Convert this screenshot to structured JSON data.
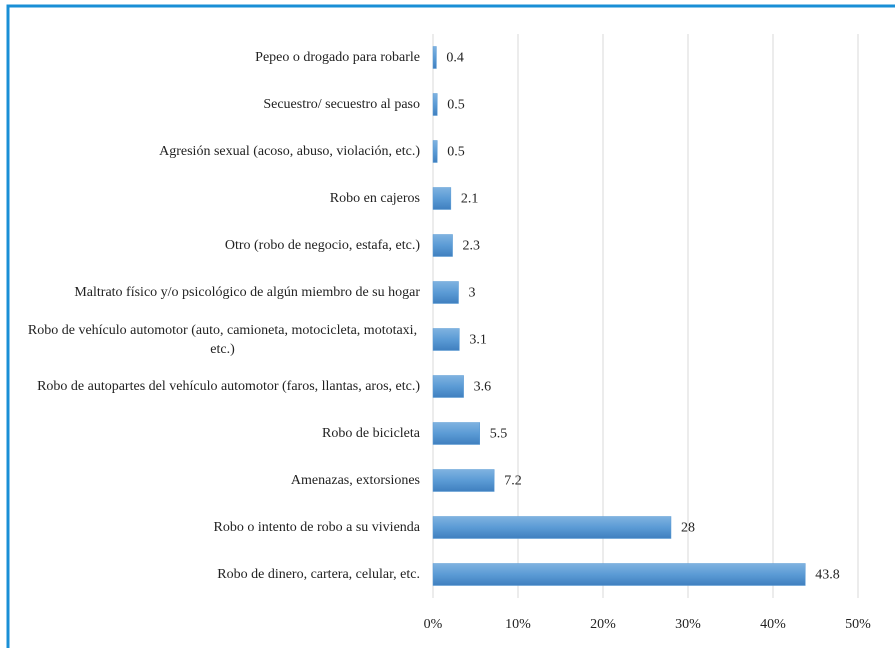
{
  "chart_data": {
    "type": "bar",
    "orientation": "horizontal",
    "categories": [
      "Pepeo o drogado para robarle",
      "Secuestro/ secuestro al paso",
      "Agresión sexual (acoso, abuso, violación, etc.)",
      "Robo en cajeros",
      "Otro (robo de negocio, estafa, etc.)",
      "Maltrato físico y/o psicológico de algún miembro de su hogar",
      "Robo de vehículo automotor (auto, camioneta, motocicleta, mototaxi, etc.)",
      "Robo de autopartes del vehículo automotor (faros, llantas, aros, etc.)",
      "Robo de bicicleta",
      "Amenazas, extorsiones",
      "Robo o intento de robo a su vivienda",
      "Robo de dinero, cartera, celular, etc."
    ],
    "values": [
      0.4,
      0.5,
      0.5,
      2.1,
      2.3,
      3,
      3.1,
      3.6,
      5.5,
      7.2,
      28,
      43.8
    ],
    "color": "#5b9bd5",
    "xlim": [
      0,
      50
    ],
    "xticks": [
      {
        "value": 0,
        "label": "0%"
      },
      {
        "value": 10,
        "label": "10%"
      },
      {
        "value": 20,
        "label": "20%"
      },
      {
        "value": 30,
        "label": "30%"
      },
      {
        "value": 40,
        "label": "40%"
      },
      {
        "value": 50,
        "label": "50%"
      }
    ],
    "grid": true
  }
}
